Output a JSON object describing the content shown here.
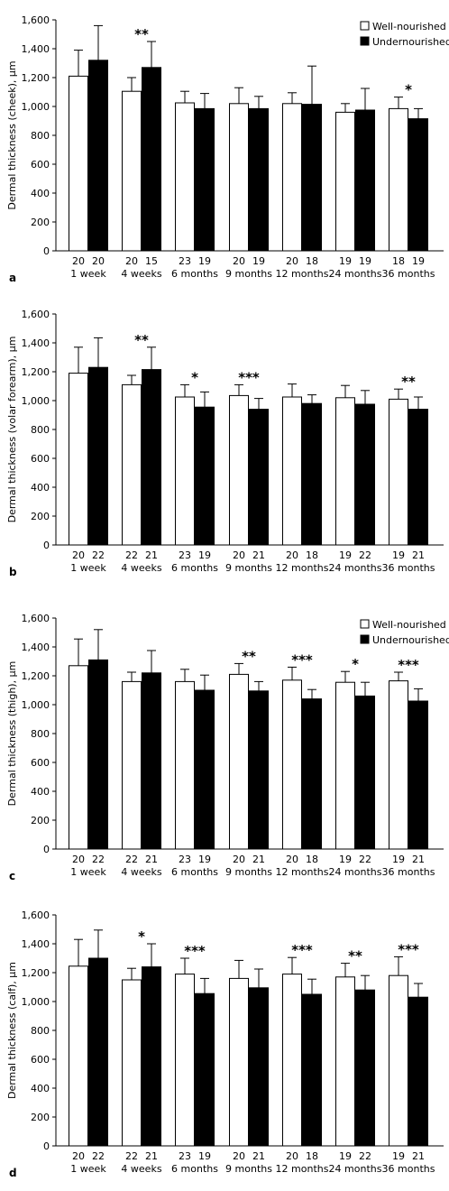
{
  "legend": {
    "series": [
      "Well-nourished",
      "Undernourished"
    ],
    "placement": "top-right"
  },
  "colors": {
    "well_nourished": "#ffffff",
    "undernourished": "#000000",
    "stroke": "#000000"
  },
  "chart_data": [
    {
      "type": "bar",
      "panel": "a",
      "ylabel": "Dermal thickness (cheek), µm",
      "ylim": [
        0,
        1600
      ],
      "yticks": [
        "0",
        "200",
        "400",
        "600",
        "800",
        "1,000",
        "1,200",
        "1,400",
        "1,600"
      ],
      "categories": [
        "1 week",
        "4 weeks",
        "6 months",
        "9 months",
        "12 months",
        "24 months",
        "36 months"
      ],
      "show_legend": true,
      "series": [
        {
          "name": "Well-nourished",
          "values": [
            1210,
            1105,
            1025,
            1020,
            1020,
            960,
            985
          ],
          "errors": [
            180,
            95,
            80,
            110,
            75,
            60,
            80
          ],
          "n": [
            "20",
            "20",
            "23",
            "20",
            "20",
            "19",
            "18"
          ]
        },
        {
          "name": "Undernourished",
          "values": [
            1320,
            1270,
            985,
            985,
            1015,
            975,
            915
          ],
          "errors": [
            240,
            180,
            105,
            85,
            265,
            150,
            70
          ],
          "n": [
            "20",
            "15",
            "19",
            "19",
            "18",
            "19",
            "19"
          ]
        }
      ],
      "significance": [
        "",
        "**",
        "",
        "",
        "",
        "",
        "*"
      ]
    },
    {
      "type": "bar",
      "panel": "b",
      "ylabel": "Dermal thickness (volar forearm), µm",
      "ylim": [
        0,
        1600
      ],
      "yticks": [
        "0",
        "200",
        "400",
        "600",
        "800",
        "1,000",
        "1,200",
        "1,400",
        "1,600"
      ],
      "categories": [
        "1 week",
        "4 weeks",
        "6 months",
        "9 months",
        "12 months",
        "24 months",
        "36 months"
      ],
      "show_legend": false,
      "series": [
        {
          "name": "Well-nourished",
          "values": [
            1190,
            1110,
            1025,
            1035,
            1025,
            1020,
            1010
          ],
          "errors": [
            180,
            65,
            85,
            75,
            90,
            85,
            70
          ],
          "n": [
            "20",
            "22",
            "23",
            "20",
            "20",
            "19",
            "19"
          ]
        },
        {
          "name": "Undernourished",
          "values": [
            1230,
            1215,
            955,
            940,
            980,
            975,
            940
          ],
          "errors": [
            205,
            155,
            105,
            75,
            60,
            95,
            85
          ],
          "n": [
            "22",
            "21",
            "19",
            "21",
            "18",
            "22",
            "21"
          ]
        }
      ],
      "significance": [
        "",
        "**",
        "*",
        "***",
        "",
        "",
        "**"
      ]
    },
    {
      "type": "bar",
      "panel": "c",
      "ylabel": "Dermal thickness (thigh), µm",
      "ylim": [
        0,
        1600
      ],
      "yticks": [
        "0",
        "200",
        "400",
        "600",
        "800",
        "1,000",
        "1,200",
        "1,400",
        "1,600"
      ],
      "categories": [
        "1 week",
        "4 weeks",
        "6 months",
        "9 months",
        "12 months",
        "24 months",
        "36 months"
      ],
      "show_legend": true,
      "series": [
        {
          "name": "Well-nourished",
          "values": [
            1270,
            1160,
            1160,
            1210,
            1170,
            1155,
            1165
          ],
          "errors": [
            185,
            65,
            85,
            75,
            90,
            75,
            60
          ],
          "n": [
            "20",
            "22",
            "23",
            "20",
            "20",
            "19",
            "19"
          ]
        },
        {
          "name": "Undernourished",
          "values": [
            1310,
            1220,
            1100,
            1095,
            1040,
            1060,
            1025
          ],
          "errors": [
            210,
            155,
            105,
            65,
            65,
            95,
            85
          ],
          "n": [
            "22",
            "21",
            "19",
            "21",
            "18",
            "22",
            "21"
          ]
        }
      ],
      "significance": [
        "",
        "",
        "",
        "**",
        "***",
        "*",
        "***"
      ]
    },
    {
      "type": "bar",
      "panel": "d",
      "ylabel": "Dermal thickness (calf), µm",
      "ylim": [
        0,
        1600
      ],
      "yticks": [
        "0",
        "200",
        "400",
        "600",
        "800",
        "1,000",
        "1,200",
        "1,400",
        "1,600"
      ],
      "categories": [
        "1 week",
        "4 weeks",
        "6 months",
        "9 months",
        "12 months",
        "24 months",
        "36 months"
      ],
      "show_legend": false,
      "series": [
        {
          "name": "Well-nourished",
          "values": [
            1245,
            1150,
            1190,
            1160,
            1190,
            1170,
            1180
          ],
          "errors": [
            185,
            80,
            110,
            125,
            115,
            95,
            130
          ],
          "n": [
            "20",
            "22",
            "23",
            "20",
            "20",
            "19",
            "19"
          ]
        },
        {
          "name": "Undernourished",
          "values": [
            1300,
            1240,
            1055,
            1095,
            1050,
            1080,
            1030
          ],
          "errors": [
            195,
            160,
            105,
            130,
            105,
            100,
            95
          ],
          "n": [
            "22",
            "21",
            "19",
            "21",
            "18",
            "22",
            "21"
          ]
        }
      ],
      "significance": [
        "",
        "*",
        "***",
        "",
        "***",
        "**",
        "***"
      ]
    }
  ]
}
